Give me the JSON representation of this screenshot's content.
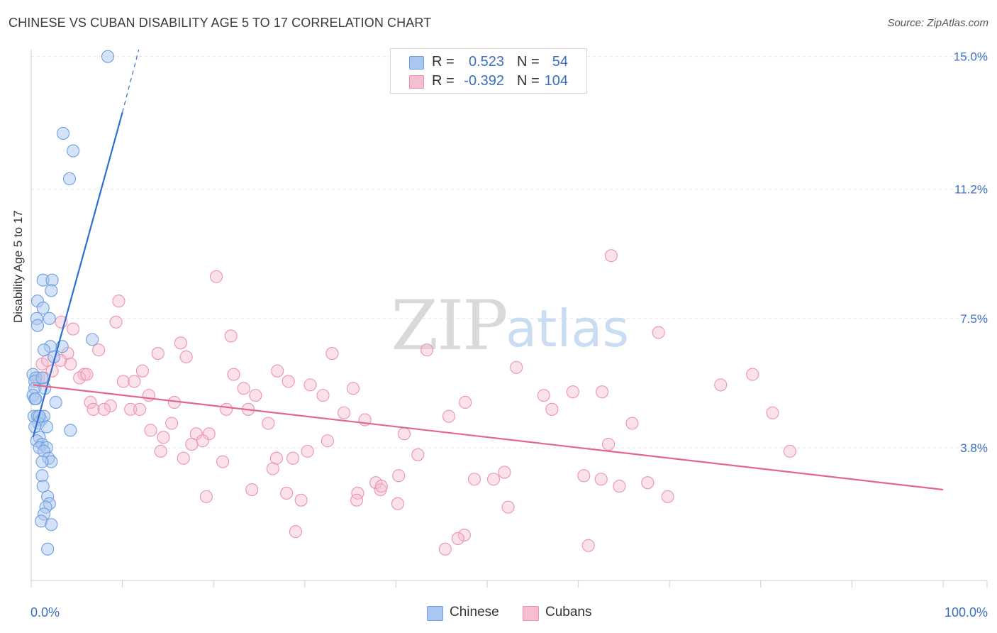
{
  "header": {
    "title": "CHINESE VS CUBAN DISABILITY AGE 5 TO 17 CORRELATION CHART",
    "source": "Source: ZipAtlas.com"
  },
  "watermark": {
    "zip": "ZIP",
    "atlas": "atlas"
  },
  "legend": {
    "rows": [
      {
        "r_label": "R =",
        "r_value": "0.523",
        "n_label": "N =",
        "n_value": "54"
      },
      {
        "r_label": "R =",
        "r_value": "-0.392",
        "n_label": "N =",
        "n_value": "104"
      }
    ],
    "bottom": [
      "Chinese",
      "Cubans"
    ]
  },
  "colors": {
    "chinese_fill": "#a9c7f0",
    "chinese_stroke": "#6f9ee0",
    "chinese_line": "#2f6fd1",
    "cubans_fill": "#f6bfd0",
    "cubans_stroke": "#eb92b0",
    "cubans_line": "#e2668f",
    "tick_label": "#3a6fc4",
    "grid": "#e2e2e2"
  },
  "chart_data": {
    "type": "scatter",
    "title": "CHINESE VS CUBAN DISABILITY AGE 5 TO 17 CORRELATION CHART",
    "xlabel": "",
    "ylabel": "Disability Age 5 to 17",
    "xlim": [
      0,
      100
    ],
    "ylim": [
      0,
      15.4
    ],
    "x_tick_labels": [
      "0.0%",
      "100.0%"
    ],
    "y_ticks": [
      3.8,
      7.5,
      11.2,
      15.0
    ],
    "y_tick_labels": [
      "3.8%",
      "7.5%",
      "11.2%",
      "15.0%"
    ],
    "grid": true,
    "series": [
      {
        "name": "Chinese",
        "r": 0.523,
        "n": 54,
        "trend": {
          "x0": 0.2,
          "y0": 4.1,
          "x1": 10.0,
          "y1": 13.4,
          "dash_x1": 11.8,
          "dash_y1": 15.2
        },
        "points": [
          [
            8.4,
            15.0
          ],
          [
            3.5,
            12.8
          ],
          [
            4.6,
            12.3
          ],
          [
            4.2,
            11.5
          ],
          [
            1.3,
            8.6
          ],
          [
            2.3,
            8.6
          ],
          [
            2.2,
            8.3
          ],
          [
            0.7,
            8.0
          ],
          [
            1.3,
            7.8
          ],
          [
            0.6,
            7.5
          ],
          [
            2.0,
            7.5
          ],
          [
            0.7,
            7.3
          ],
          [
            6.7,
            6.9
          ],
          [
            2.1,
            6.7
          ],
          [
            3.4,
            6.7
          ],
          [
            1.4,
            6.6
          ],
          [
            0.2,
            5.9
          ],
          [
            0.5,
            5.8
          ],
          [
            0.4,
            5.7
          ],
          [
            0.4,
            5.5
          ],
          [
            1.5,
            5.5
          ],
          [
            0.2,
            5.3
          ],
          [
            0.4,
            5.2
          ],
          [
            2.7,
            5.1
          ],
          [
            0.3,
            4.7
          ],
          [
            0.7,
            4.7
          ],
          [
            1.1,
            4.6
          ],
          [
            1.4,
            4.7
          ],
          [
            0.8,
            4.5
          ],
          [
            0.4,
            4.4
          ],
          [
            1.7,
            4.4
          ],
          [
            4.3,
            4.3
          ],
          [
            0.9,
            4.1
          ],
          [
            0.6,
            4.0
          ],
          [
            1.2,
            3.9
          ],
          [
            0.9,
            3.8
          ],
          [
            1.7,
            3.8
          ],
          [
            1.4,
            3.7
          ],
          [
            1.9,
            3.5
          ],
          [
            2.2,
            3.4
          ],
          [
            1.2,
            3.4
          ],
          [
            1.2,
            3.0
          ],
          [
            1.3,
            2.7
          ],
          [
            1.8,
            2.4
          ],
          [
            2.0,
            2.2
          ],
          [
            1.6,
            2.1
          ],
          [
            1.4,
            1.9
          ],
          [
            1.1,
            1.7
          ],
          [
            2.2,
            1.6
          ],
          [
            1.8,
            0.9
          ],
          [
            0.5,
            5.2
          ],
          [
            0.9,
            4.7
          ],
          [
            1.2,
            5.8
          ],
          [
            2.5,
            6.4
          ]
        ]
      },
      {
        "name": "Cubans",
        "r": -0.392,
        "n": 104,
        "trend": {
          "x0": 0.2,
          "y0": 5.6,
          "x1": 100.0,
          "y1": 2.6
        },
        "points": [
          [
            63.6,
            9.3
          ],
          [
            20.3,
            8.7
          ],
          [
            9.6,
            8.0
          ],
          [
            3.3,
            7.4
          ],
          [
            9.3,
            7.4
          ],
          [
            4.6,
            7.2
          ],
          [
            21.9,
            7.0
          ],
          [
            68.8,
            7.1
          ],
          [
            16.4,
            6.8
          ],
          [
            7.4,
            6.6
          ],
          [
            4.0,
            6.5
          ],
          [
            13.9,
            6.5
          ],
          [
            17.0,
            6.4
          ],
          [
            33.0,
            6.5
          ],
          [
            43.4,
            6.6
          ],
          [
            1.2,
            6.2
          ],
          [
            1.8,
            6.3
          ],
          [
            4.3,
            6.2
          ],
          [
            2.3,
            6.0
          ],
          [
            12.2,
            6.0
          ],
          [
            22.2,
            5.9
          ],
          [
            27.0,
            6.0
          ],
          [
            53.2,
            6.1
          ],
          [
            79.1,
            5.9
          ],
          [
            0.8,
            5.8
          ],
          [
            5.8,
            5.9
          ],
          [
            5.3,
            5.8
          ],
          [
            1.4,
            5.8
          ],
          [
            10.1,
            5.7
          ],
          [
            11.3,
            5.7
          ],
          [
            28.2,
            5.7
          ],
          [
            30.6,
            5.6
          ],
          [
            75.6,
            5.6
          ],
          [
            35.3,
            5.5
          ],
          [
            12.9,
            5.3
          ],
          [
            24.6,
            5.3
          ],
          [
            32.0,
            5.3
          ],
          [
            56.2,
            5.3
          ],
          [
            59.4,
            5.4
          ],
          [
            62.6,
            5.4
          ],
          [
            6.5,
            5.1
          ],
          [
            8.7,
            5.0
          ],
          [
            15.7,
            5.1
          ],
          [
            47.6,
            5.1
          ],
          [
            6.8,
            4.9
          ],
          [
            8.0,
            4.9
          ],
          [
            10.9,
            4.9
          ],
          [
            11.9,
            4.9
          ],
          [
            21.4,
            4.9
          ],
          [
            23.8,
            4.9
          ],
          [
            34.3,
            4.8
          ],
          [
            57.1,
            4.9
          ],
          [
            81.3,
            4.8
          ],
          [
            45.8,
            4.7
          ],
          [
            36.6,
            4.6
          ],
          [
            15.4,
            4.5
          ],
          [
            26.0,
            4.5
          ],
          [
            65.9,
            4.5
          ],
          [
            13.1,
            4.3
          ],
          [
            18.1,
            4.2
          ],
          [
            19.5,
            4.2
          ],
          [
            40.9,
            4.2
          ],
          [
            14.5,
            4.1
          ],
          [
            18.8,
            4.0
          ],
          [
            32.5,
            4.0
          ],
          [
            63.3,
            3.9
          ],
          [
            17.6,
            3.9
          ],
          [
            30.3,
            3.7
          ],
          [
            14.2,
            3.7
          ],
          [
            42.4,
            3.6
          ],
          [
            83.2,
            3.7
          ],
          [
            16.7,
            3.5
          ],
          [
            21.0,
            3.4
          ],
          [
            26.9,
            3.5
          ],
          [
            28.7,
            3.5
          ],
          [
            51.9,
            3.1
          ],
          [
            48.6,
            2.9
          ],
          [
            40.3,
            3.0
          ],
          [
            37.8,
            2.8
          ],
          [
            62.5,
            2.9
          ],
          [
            26.5,
            3.2
          ],
          [
            67.6,
            2.8
          ],
          [
            28.0,
            2.5
          ],
          [
            38.3,
            2.6
          ],
          [
            50.7,
            2.9
          ],
          [
            19.2,
            2.4
          ],
          [
            24.2,
            2.6
          ],
          [
            35.8,
            2.5
          ],
          [
            64.5,
            2.7
          ],
          [
            69.8,
            2.4
          ],
          [
            29.6,
            2.3
          ],
          [
            40.2,
            2.2
          ],
          [
            52.3,
            2.1
          ],
          [
            35.7,
            2.3
          ],
          [
            29.0,
            1.4
          ],
          [
            47.5,
            1.3
          ],
          [
            46.8,
            1.2
          ],
          [
            45.4,
            0.9
          ],
          [
            61.1,
            1.0
          ],
          [
            60.6,
            3.0
          ],
          [
            6.1,
            5.9
          ],
          [
            3.2,
            6.3
          ],
          [
            38.4,
            2.7
          ],
          [
            23.3,
            5.5
          ]
        ]
      }
    ]
  }
}
